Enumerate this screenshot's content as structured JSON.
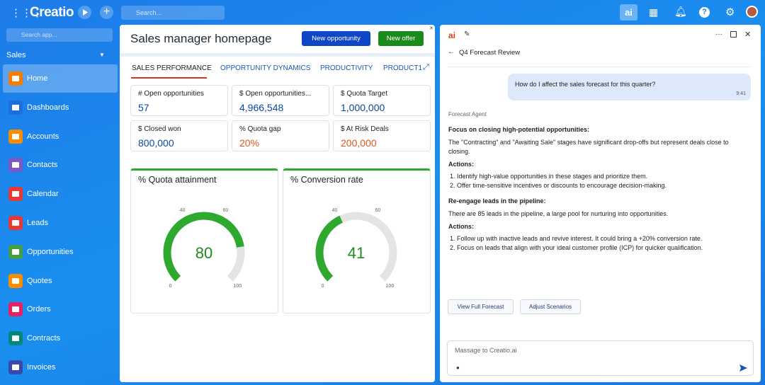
{
  "topbar": {
    "brand": "Creatio",
    "search_placeholder": "Search...",
    "ai_label": "ai"
  },
  "sidebar": {
    "search_placeholder": "Search app...",
    "section": "Sales",
    "items": [
      "Home",
      "Dashboards",
      "Accounts",
      "Contacts",
      "Calendar",
      "Leads",
      "Opportunities",
      "Quotes",
      "Orders",
      "Contracts",
      "Invoices"
    ]
  },
  "page": {
    "title": "Sales manager homepage",
    "buttons": [
      {
        "label": "New opportunity",
        "color": "#0d47c7"
      },
      {
        "label": "New offer",
        "color": "#1a8a1a"
      }
    ],
    "tabs": [
      "SALES PERFORMANCE",
      "OPPORTUNITY DYNAMICS",
      "PRODUCTIVITY",
      "PRODUCT1"
    ],
    "metrics": [
      {
        "label": "# Open opportunities",
        "value": "57",
        "color": "#0d47a1"
      },
      {
        "label": "$ Open opportunities...",
        "value": "4,966,548",
        "color": "#0d47a1"
      },
      {
        "label": "$ Quota Target",
        "value": "1,000,000",
        "color": "#0d47a1"
      },
      {
        "label": "$ Closed won",
        "value": "800,000",
        "color": "#0d47a1"
      },
      {
        "label": "% Quota gap",
        "value": "20%",
        "color": "#e0561b"
      },
      {
        "label": "$ At Risk Deals",
        "value": "200,000",
        "color": "#e0561b"
      }
    ],
    "gauges": [
      {
        "title": "% Quota attainment",
        "value": 80,
        "range": [
          0,
          100
        ],
        "ticks": [
          0,
          40,
          60,
          100
        ],
        "color": "#2ea82e"
      },
      {
        "title": "% Conversion rate",
        "value": 41,
        "range": [
          0,
          100
        ],
        "ticks": [
          0,
          40,
          60,
          100
        ],
        "color": "#2ea82e"
      }
    ]
  },
  "assistant": {
    "title": "Q4 Forecast Review",
    "user_message": "How do I affect the sales forecast for this quarter?",
    "time": "9:41",
    "agent": "Forecast Agent",
    "sections": [
      {
        "heading": "Focus on closing high-potential opportunities:",
        "text": "The \"Contracting\" and \"Awaiting Sale\" stages have significant drop-offs but represent deals close to closing.",
        "actions_label": "Actions:",
        "actions": [
          "Identify high-value opportunities in these stages and prioritize them.",
          "Offer time-sensitive incentives or discounts to encourage decision-making."
        ]
      },
      {
        "heading": "Re-engage leads in the pipeline:",
        "text": "There are 85 leads in the pipeline, a large pool for nurturing into opportunities.",
        "actions_label": "Actions:",
        "actions": [
          "Follow up with inactive leads and revive interest. It could bring a +20% conversion rate.",
          "Focus on leads that align with your ideal customer profile (ICP) for quicker qualification."
        ]
      }
    ],
    "buttons": [
      "View Full Forecast",
      "Adjust Scenarios"
    ],
    "input_placeholder": "Massage to Creatio.ai"
  }
}
